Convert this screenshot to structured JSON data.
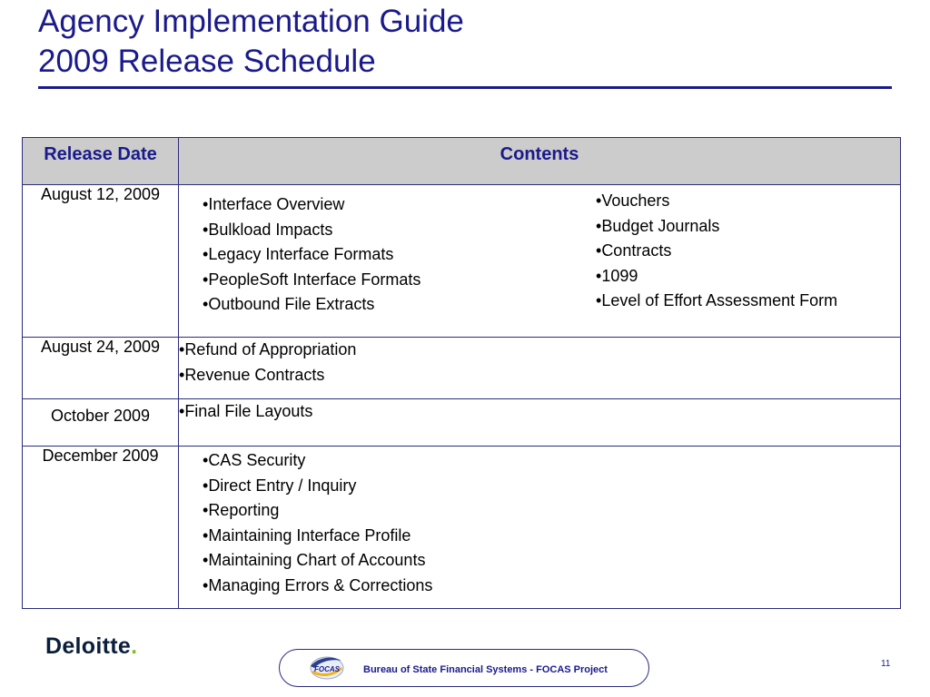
{
  "title": {
    "line1": "Agency Implementation Guide",
    "line2": "2009 Release Schedule"
  },
  "table": {
    "headers": {
      "release_date": "Release Date",
      "contents": "Contents"
    },
    "rows": [
      {
        "date": "August 12, 2009",
        "items_left": [
          "Interface Overview",
          "Bulkload Impacts",
          "Legacy Interface Formats",
          "PeopleSoft Interface Formats",
          "Outbound File Extracts"
        ],
        "items_right": [
          "Vouchers",
          "Budget Journals",
          "Contracts",
          "1099",
          "Level of Effort Assessment Form"
        ]
      },
      {
        "date": "August 24, 2009",
        "items": [
          "Refund of Appropriation",
          "Revenue Contracts"
        ]
      },
      {
        "date": "October 2009",
        "items": [
          "Final File Layouts"
        ]
      },
      {
        "date": "December 2009",
        "items": [
          "CAS Security",
          "Direct Entry / Inquiry",
          "Reporting",
          "Maintaining Interface Profile",
          "Maintaining Chart of Accounts",
          "Managing Errors & Corrections"
        ]
      }
    ]
  },
  "footer": {
    "logo_text": "Deloitte",
    "logo_dot": ".",
    "banner_logo_text": "FOCAS",
    "banner_text": "Bureau of State Financial Systems - FOCAS Project",
    "page_number": "11"
  },
  "colors": {
    "title": "#1a1a8c",
    "header_bg": "#cccccc",
    "border": "#2b2b80",
    "deloitte_green": "#86bc25"
  }
}
